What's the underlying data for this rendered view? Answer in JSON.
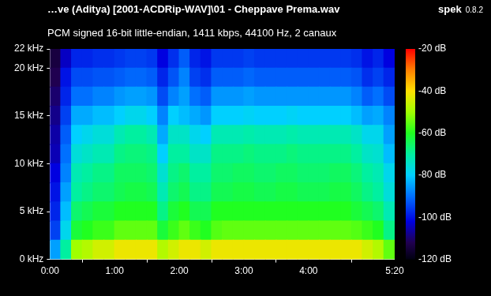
{
  "chart_data": {
    "type": "heatmap",
    "title": "…ve (Aditya) [2001-ACDRip-WAV]\\01 - Cheppave Prema.wav",
    "subtitle": "PCM signed 16-bit little-endian, 1411 kbps, 44100 Hz, 2 canaux",
    "annotations": [
      "spek",
      "0.8.2"
    ],
    "x_bins": [
      0,
      10,
      20,
      30,
      40,
      50,
      60,
      70,
      80,
      90,
      100,
      110,
      120,
      130,
      140,
      150,
      160,
      170,
      180,
      190,
      200,
      210,
      220,
      230,
      240,
      250,
      260,
      270,
      280,
      290,
      300,
      310,
      320
    ],
    "y_bins": [
      0,
      2,
      4,
      6,
      8,
      10,
      12,
      14,
      16,
      18,
      20,
      22
    ],
    "cells": [
      [
        -85,
        -70,
        -50,
        -48,
        -45,
        -45,
        -42,
        -42,
        -42,
        -42,
        -48,
        -45,
        -42,
        -42,
        -45,
        -42,
        -42,
        -42,
        -42,
        -42,
        -42,
        -42,
        -42,
        -42,
        -42,
        -42,
        -42,
        -42,
        -42,
        -45,
        -48,
        -55
      ],
      [
        -95,
        -78,
        -62,
        -60,
        -58,
        -58,
        -55,
        -55,
        -55,
        -55,
        -62,
        -58,
        -55,
        -58,
        -60,
        -56,
        -55,
        -55,
        -55,
        -55,
        -55,
        -55,
        -55,
        -55,
        -55,
        -55,
        -55,
        -55,
        -56,
        -58,
        -60,
        -68
      ],
      [
        -98,
        -82,
        -66,
        -64,
        -62,
        -62,
        -60,
        -60,
        -60,
        -60,
        -68,
        -62,
        -60,
        -64,
        -64,
        -60,
        -60,
        -60,
        -60,
        -60,
        -60,
        -60,
        -60,
        -60,
        -60,
        -60,
        -60,
        -60,
        -62,
        -64,
        -66,
        -72
      ],
      [
        -100,
        -85,
        -70,
        -68,
        -66,
        -66,
        -64,
        -63,
        -63,
        -64,
        -72,
        -66,
        -64,
        -68,
        -68,
        -64,
        -64,
        -63,
        -63,
        -64,
        -64,
        -63,
        -63,
        -64,
        -64,
        -64,
        -63,
        -63,
        -65,
        -68,
        -70,
        -76
      ],
      [
        -102,
        -88,
        -72,
        -70,
        -68,
        -68,
        -65,
        -65,
        -65,
        -66,
        -75,
        -68,
        -66,
        -70,
        -70,
        -66,
        -66,
        -65,
        -65,
        -66,
        -66,
        -65,
        -65,
        -66,
        -66,
        -66,
        -65,
        -65,
        -67,
        -70,
        -72,
        -78
      ],
      [
        -105,
        -90,
        -76,
        -74,
        -72,
        -72,
        -68,
        -67,
        -67,
        -68,
        -80,
        -70,
        -70,
        -74,
        -74,
        -68,
        -68,
        -68,
        -67,
        -68,
        -68,
        -68,
        -67,
        -68,
        -68,
        -68,
        -68,
        -68,
        -70,
        -74,
        -75,
        -82
      ],
      [
        -106,
        -92,
        -80,
        -78,
        -76,
        -76,
        -72,
        -70,
        -70,
        -72,
        -84,
        -74,
        -74,
        -78,
        -80,
        -72,
        -72,
        -72,
        -71,
        -72,
        -72,
        -72,
        -71,
        -72,
        -72,
        -72,
        -72,
        -72,
        -74,
        -78,
        -78,
        -85
      ],
      [
        -108,
        -95,
        -84,
        -84,
        -82,
        -82,
        -80,
        -78,
        -78,
        -80,
        -88,
        -80,
        -82,
        -84,
        -86,
        -80,
        -80,
        -80,
        -79,
        -80,
        -80,
        -80,
        -79,
        -80,
        -80,
        -80,
        -80,
        -80,
        -82,
        -85,
        -84,
        -88
      ],
      [
        -110,
        -98,
        -90,
        -90,
        -88,
        -88,
        -86,
        -85,
        -85,
        -86,
        -94,
        -88,
        -85,
        -90,
        -92,
        -86,
        -86,
        -86,
        -85,
        -86,
        -86,
        -86,
        -86,
        -86,
        -86,
        -86,
        -86,
        -86,
        -88,
        -92,
        -90,
        -94
      ],
      [
        -112,
        -100,
        -94,
        -94,
        -93,
        -93,
        -92,
        -91,
        -91,
        -92,
        -98,
        -93,
        -88,
        -95,
        -97,
        -92,
        -92,
        -92,
        -91,
        -92,
        -92,
        -92,
        -92,
        -92,
        -92,
        -92,
        -92,
        -92,
        -93,
        -97,
        -95,
        -98
      ],
      [
        -114,
        -104,
        -98,
        -98,
        -97,
        -97,
        -96,
        -95,
        -95,
        -96,
        -102,
        -97,
        -92,
        -98,
        -100,
        -96,
        -96,
        -96,
        -95,
        -96,
        -96,
        -96,
        -96,
        -96,
        -96,
        -96,
        -96,
        -96,
        -97,
        -100,
        -98,
        -102
      ]
    ],
    "xlim": [
      0,
      320
    ],
    "xticks": [
      {
        "value": 0,
        "label": "0:00"
      },
      {
        "value": 60,
        "label": "1:00"
      },
      {
        "value": 120,
        "label": "2:00"
      },
      {
        "value": 180,
        "label": "3:00"
      },
      {
        "value": 240,
        "label": "4:00"
      },
      {
        "value": 320,
        "label": "5:20"
      }
    ],
    "ylim": [
      0,
      22
    ],
    "yticks": [
      {
        "value": 0,
        "label": "0 kHz"
      },
      {
        "value": 5,
        "label": "5 kHz"
      },
      {
        "value": 10,
        "label": "10 kHz"
      },
      {
        "value": 15,
        "label": "15 kHz"
      },
      {
        "value": 20,
        "label": "20 kHz"
      },
      {
        "value": 22,
        "label": "22 kHz"
      }
    ],
    "colorbar_range": [
      -120,
      -20
    ],
    "colorbar_ticks": [
      {
        "value": -20,
        "label": "-20 dB"
      },
      {
        "value": -40,
        "label": "-40 dB"
      },
      {
        "value": -60,
        "label": "-60 dB"
      },
      {
        "value": -80,
        "label": "-80 dB"
      },
      {
        "value": -100,
        "label": "-100 dB"
      },
      {
        "value": -120,
        "label": "-120 dB"
      }
    ],
    "grid": false
  }
}
